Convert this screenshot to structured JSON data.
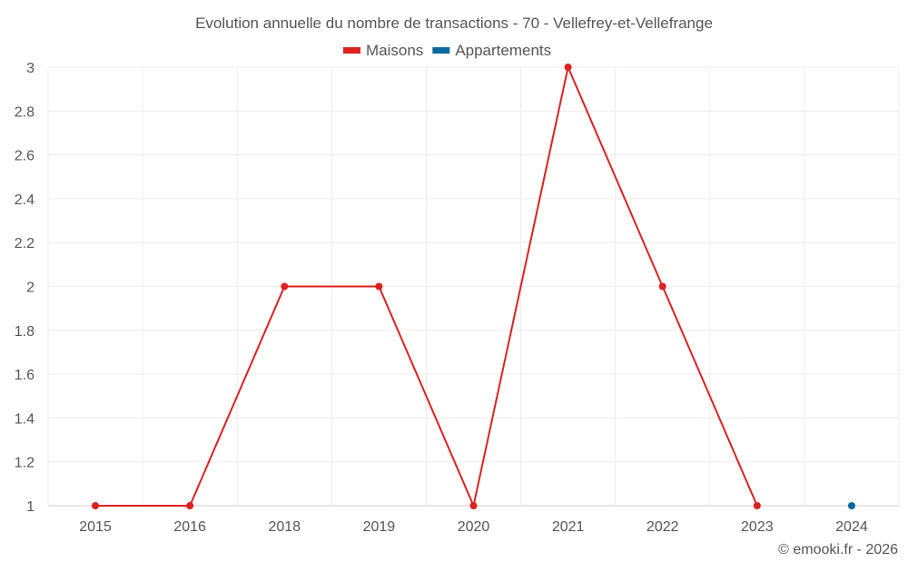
{
  "chart_data": {
    "type": "line",
    "title": "Evolution annuelle du nombre de transactions - 70 - Vellefrey-et-Vellefrange",
    "categories": [
      "2015",
      "2016",
      "2018",
      "2019",
      "2020",
      "2021",
      "2022",
      "2023",
      "2024"
    ],
    "series": [
      {
        "name": "Maisons",
        "color": "#dc2121",
        "values": [
          1,
          1,
          2,
          2,
          1,
          3,
          2,
          1,
          null
        ]
      },
      {
        "name": "Appartements",
        "color": "#0a69a0",
        "values": [
          null,
          null,
          null,
          null,
          null,
          null,
          null,
          null,
          1
        ]
      }
    ],
    "ylim": [
      1,
      3
    ],
    "yticks": [
      "1",
      "1.2",
      "1.4",
      "1.6",
      "1.8",
      "2",
      "2.2",
      "2.4",
      "2.6",
      "2.8",
      "3"
    ],
    "legend": "top-center",
    "grid": true
  },
  "footer": "© emooki.fr - 2026"
}
